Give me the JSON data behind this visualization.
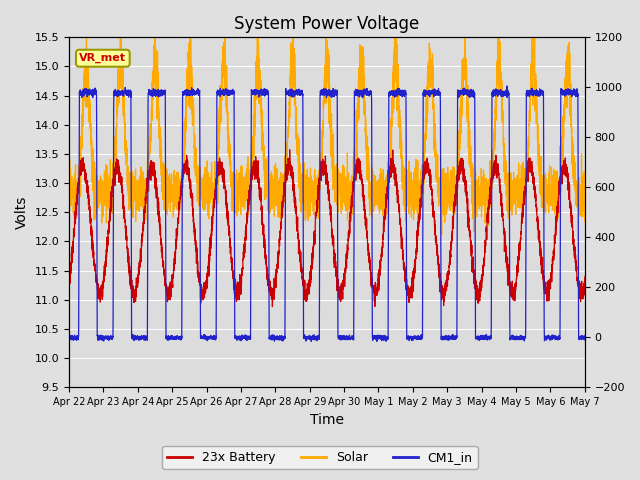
{
  "title": "System Power Voltage",
  "xlabel": "Time",
  "ylabel": "Volts",
  "ylim_left": [
    9.5,
    15.5
  ],
  "ylim_right": [
    -200,
    1200
  ],
  "fig_bg": "#e0e0e0",
  "plot_bg": "#dcdcdc",
  "grid_color": "#ffffff",
  "legend_labels": [
    "23x Battery",
    "Solar",
    "CM1_in"
  ],
  "legend_colors": [
    "#cc0000",
    "#ffaa00",
    "#2222cc"
  ],
  "annotation_text": "VR_met",
  "annotation_bg": "#ffff99",
  "annotation_border": "#999900",
  "tick_dates": [
    "Apr 22",
    "Apr 23",
    "Apr 24",
    "Apr 25",
    "Apr 26",
    "Apr 27",
    "Apr 28",
    "Apr 29",
    "Apr 30",
    "May 1",
    "May 2",
    "May 3",
    "May 4",
    "May 5",
    "May 6",
    "May 7"
  ],
  "num_days": 15
}
